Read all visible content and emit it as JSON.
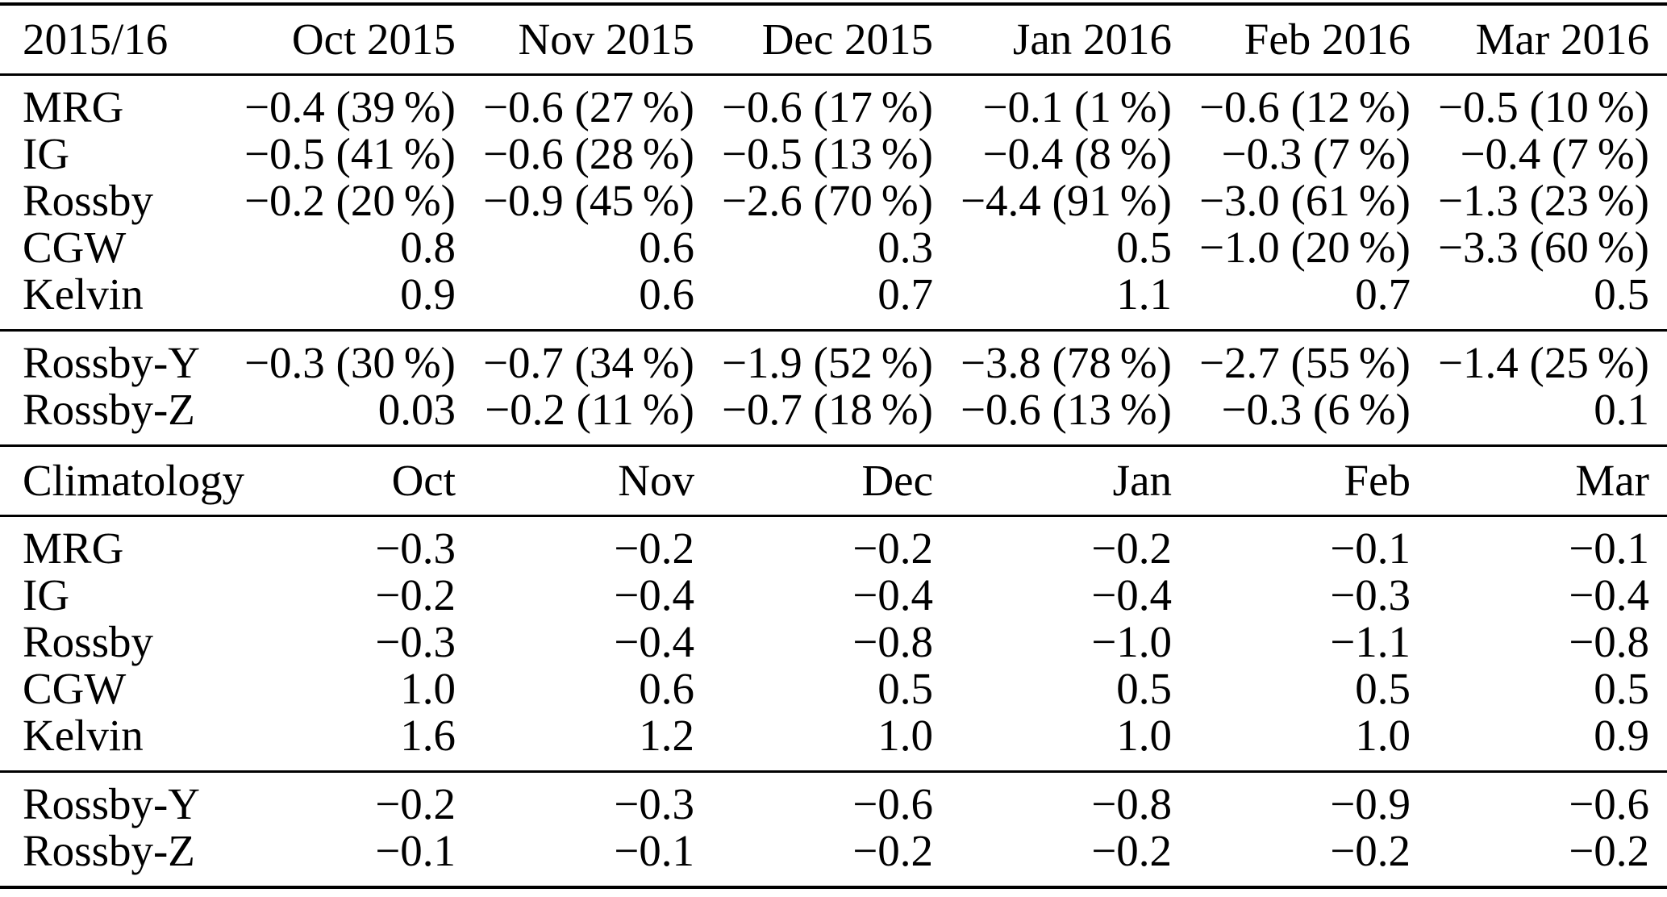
{
  "table": {
    "sections": [
      {
        "header": {
          "label": "2015/16",
          "columns": [
            "Oct 2015",
            "Nov 2015",
            "Dec 2015",
            "Jan 2016",
            "Feb 2016",
            "Mar 2016"
          ]
        },
        "groups": [
          {
            "rows": [
              {
                "label": "MRG",
                "values": [
                  "−0.4 (39 %)",
                  "−0.6 (27 %)",
                  "−0.6 (17 %)",
                  "−0.1 (1 %)",
                  "−0.6 (12 %)",
                  "−0.5 (10 %)"
                ]
              },
              {
                "label": "IG",
                "values": [
                  "−0.5 (41 %)",
                  "−0.6 (28 %)",
                  "−0.5 (13 %)",
                  "−0.4 (8 %)",
                  "−0.3 (7 %)",
                  "−0.4 (7 %)"
                ]
              },
              {
                "label": "Rossby",
                "values": [
                  "−0.2 (20 %)",
                  "−0.9 (45 %)",
                  "−2.6 (70 %)",
                  "−4.4 (91 %)",
                  "−3.0 (61 %)",
                  "−1.3 (23 %)"
                ]
              },
              {
                "label": "CGW",
                "values": [
                  "0.8",
                  "0.6",
                  "0.3",
                  "0.5",
                  "−1.0 (20 %)",
                  "−3.3 (60 %)"
                ]
              },
              {
                "label": "Kelvin",
                "values": [
                  "0.9",
                  "0.6",
                  "0.7",
                  "1.1",
                  "0.7",
                  "0.5"
                ]
              }
            ]
          },
          {
            "rows": [
              {
                "label": "Rossby-Y",
                "values": [
                  "−0.3 (30 %)",
                  "−0.7 (34 %)",
                  "−1.9 (52 %)",
                  "−3.8 (78 %)",
                  "−2.7 (55 %)",
                  "−1.4 (25 %)"
                ]
              },
              {
                "label": "Rossby-Z",
                "values": [
                  "0.03",
                  "−0.2 (11 %)",
                  "−0.7 (18 %)",
                  "−0.6 (13 %)",
                  "−0.3 (6 %)",
                  "0.1"
                ]
              }
            ]
          }
        ]
      },
      {
        "header": {
          "label": "Climatology",
          "columns": [
            "Oct",
            "Nov",
            "Dec",
            "Jan",
            "Feb",
            "Mar"
          ]
        },
        "groups": [
          {
            "rows": [
              {
                "label": "MRG",
                "values": [
                  "−0.3",
                  "−0.2",
                  "−0.2",
                  "−0.2",
                  "−0.1",
                  "−0.1"
                ]
              },
              {
                "label": "IG",
                "values": [
                  "−0.2",
                  "−0.4",
                  "−0.4",
                  "−0.4",
                  "−0.3",
                  "−0.4"
                ]
              },
              {
                "label": "Rossby",
                "values": [
                  "−0.3",
                  "−0.4",
                  "−0.8",
                  "−1.0",
                  "−1.1",
                  "−0.8"
                ]
              },
              {
                "label": "CGW",
                "values": [
                  "1.0",
                  "0.6",
                  "0.5",
                  "0.5",
                  "0.5",
                  "0.5"
                ]
              },
              {
                "label": "Kelvin",
                "values": [
                  "1.6",
                  "1.2",
                  "1.0",
                  "1.0",
                  "1.0",
                  "0.9"
                ]
              }
            ]
          },
          {
            "rows": [
              {
                "label": "Rossby-Y",
                "values": [
                  "−0.2",
                  "−0.3",
                  "−0.6",
                  "−0.8",
                  "−0.9",
                  "−0.6"
                ]
              },
              {
                "label": "Rossby-Z",
                "values": [
                  "−0.1",
                  "−0.1",
                  "−0.2",
                  "−0.2",
                  "−0.2",
                  "−0.2"
                ]
              }
            ]
          }
        ]
      }
    ]
  },
  "colors": {
    "text": "#000000",
    "background": "#ffffff",
    "rule": "#000000"
  }
}
